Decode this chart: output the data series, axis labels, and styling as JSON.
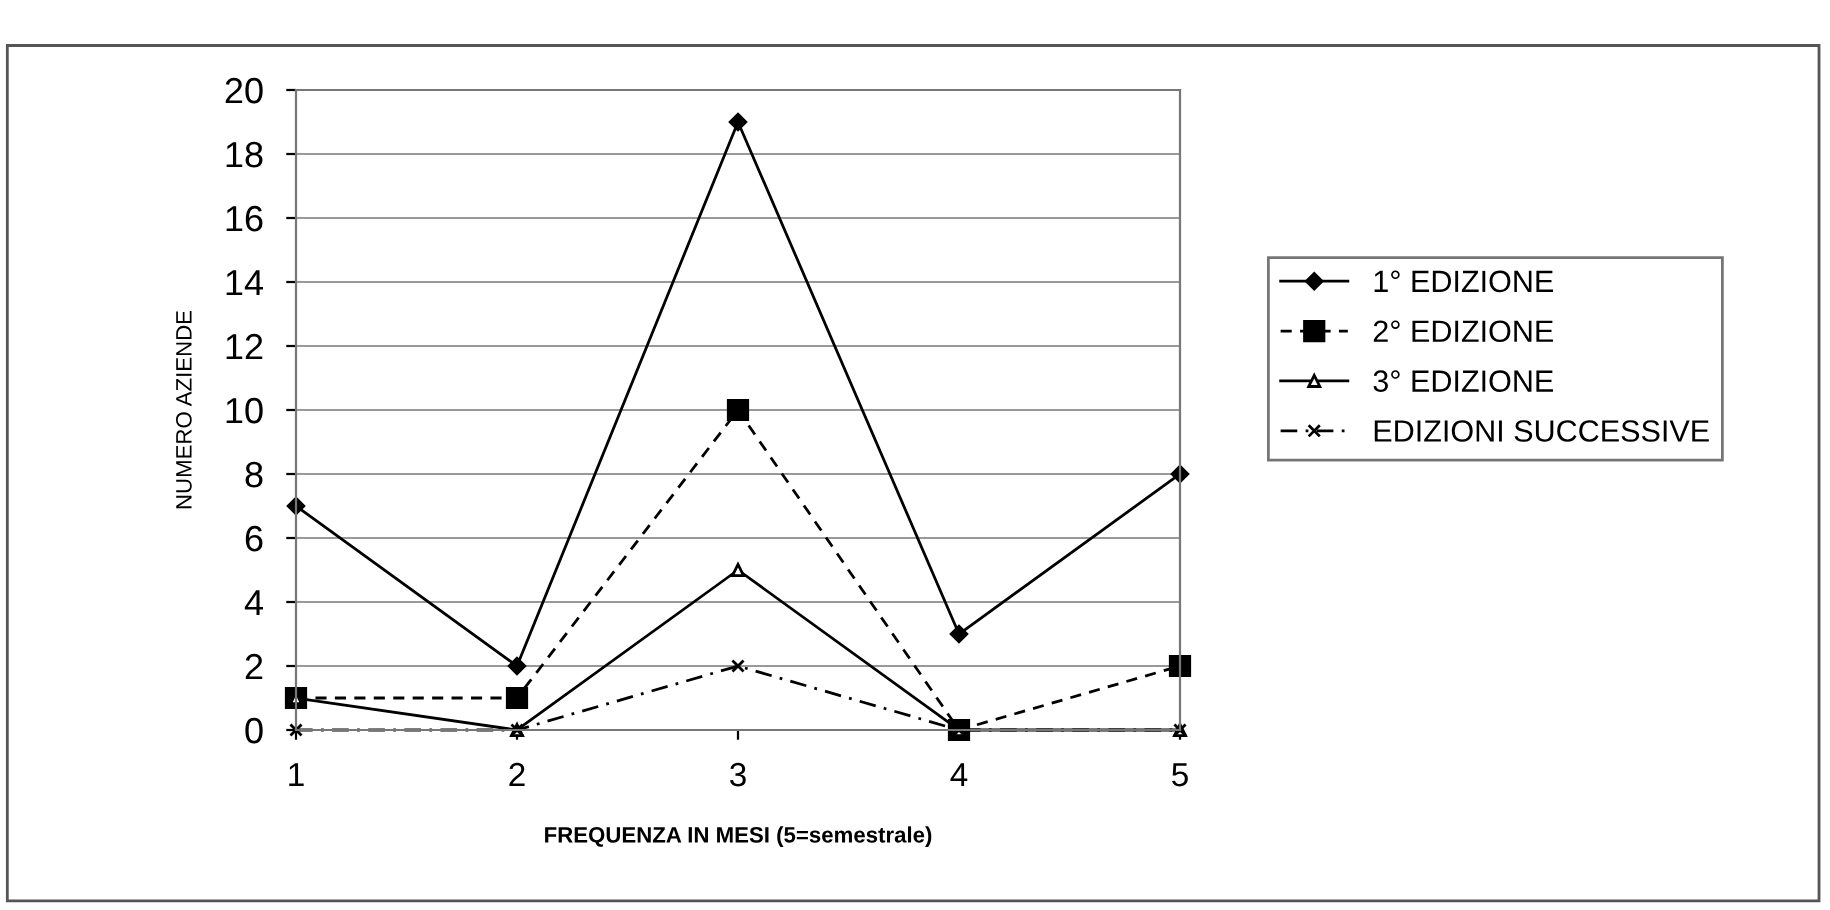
{
  "chart_data": {
    "type": "line",
    "xlabel": "FREQUENZA IN MESI (5=semestrale)",
    "ylabel": "NUMERO AZIENDE",
    "x": [
      1,
      2,
      3,
      4,
      5
    ],
    "xlim": [
      1,
      5
    ],
    "xticks": [
      1,
      2,
      3,
      4,
      5
    ],
    "ylim": [
      0,
      20
    ],
    "yticks": [
      0,
      2,
      4,
      6,
      8,
      10,
      12,
      14,
      16,
      18,
      20
    ],
    "grid": "y",
    "legend": "right",
    "series": [
      {
        "name": "1° EDIZIONE",
        "color": "#000000",
        "marker": "diamond",
        "line_style": "solid",
        "values": [
          7,
          2,
          19,
          3,
          8
        ]
      },
      {
        "name": "2° EDIZIONE",
        "color": "#000000",
        "marker": "square",
        "line_style": "dashed",
        "values": [
          1,
          1,
          10,
          0,
          2
        ]
      },
      {
        "name": "3° EDIZIONE",
        "color": "#000000",
        "marker": "triangle",
        "line_style": "solid",
        "values": [
          1,
          0,
          5,
          0,
          0
        ]
      },
      {
        "name": "EDIZIONI SUCCESSIVE",
        "color": "#000000",
        "marker": "cross",
        "line_style": "dotted",
        "values": [
          0,
          0,
          2,
          0,
          0
        ]
      }
    ]
  }
}
